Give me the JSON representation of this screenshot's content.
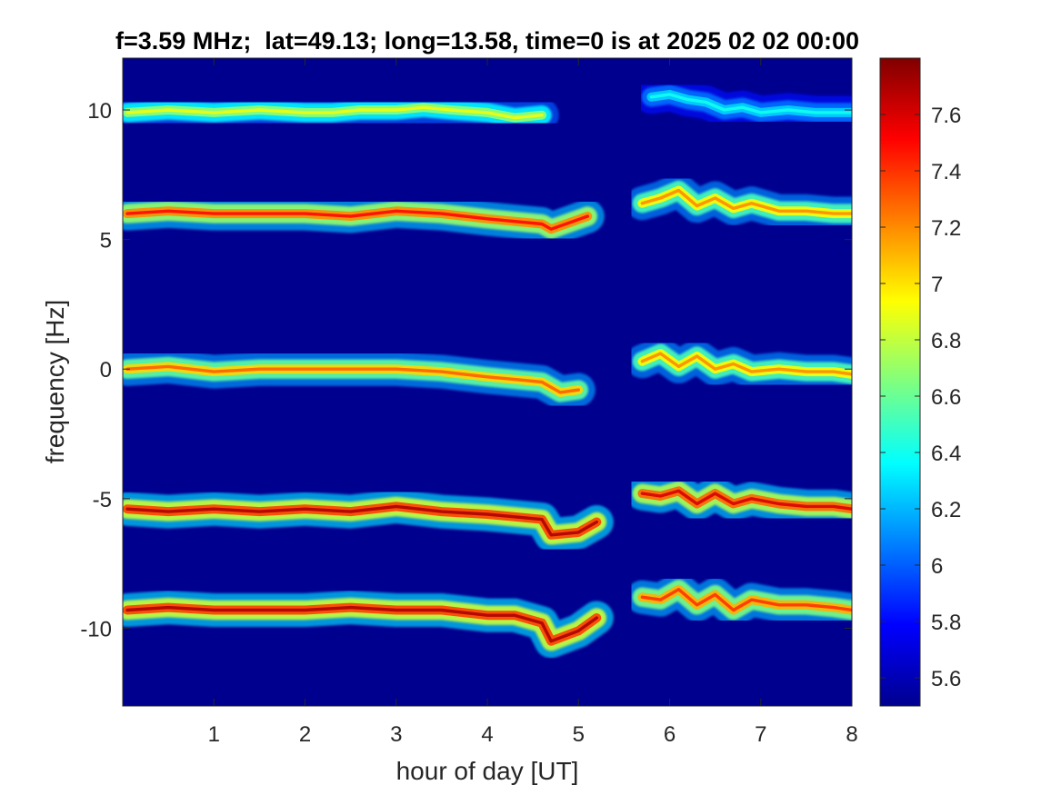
{
  "chart_data": {
    "type": "heatmap",
    "title": "f=3.59 MHz;  lat=49.13; long=13.58, time=0 is at 2025 02 02 00:00",
    "xlabel": "hour of day [UT]",
    "ylabel": "frequency [Hz]",
    "xlim": [
      0,
      8
    ],
    "ylim": [
      -13,
      12
    ],
    "x_ticks": [
      1,
      2,
      3,
      4,
      5,
      6,
      7,
      8
    ],
    "y_ticks": [
      10,
      5,
      0,
      -5,
      -10
    ],
    "colormap": "jet",
    "background_color": "#00008f",
    "clim": [
      5.5,
      7.8
    ],
    "colorbar_ticks": [
      7.6,
      7.4,
      7.2,
      7,
      6.8,
      6.6,
      6.4,
      6.2,
      6,
      5.8,
      5.6
    ],
    "data_gap_hours": [
      4.75,
      5.55
    ],
    "bands": [
      {
        "freq_hz": 10,
        "peak_value": 6.9,
        "x": [
          0.05,
          0.5,
          1.0,
          1.5,
          2.0,
          2.3,
          2.6,
          3.0,
          3.3,
          3.6,
          4.0,
          4.3,
          4.6
        ],
        "y": [
          9.9,
          10.0,
          9.9,
          10.0,
          9.9,
          9.9,
          10.0,
          10.0,
          10.1,
          10.0,
          9.9,
          9.7,
          9.8
        ]
      },
      {
        "freq_hz": 6,
        "peak_value": 7.5,
        "x": [
          0.05,
          0.5,
          1.0,
          1.5,
          2.0,
          2.5,
          3.0,
          3.5,
          4.0,
          4.3,
          4.6,
          4.7,
          5.1
        ],
        "y": [
          6.0,
          6.1,
          6.0,
          6.0,
          6.0,
          5.9,
          6.1,
          6.0,
          5.8,
          5.7,
          5.6,
          5.4,
          5.9
        ]
      },
      {
        "freq_hz": 0,
        "peak_value": 7.3,
        "x": [
          0.05,
          0.5,
          1.0,
          1.5,
          2.0,
          2.5,
          3.0,
          3.5,
          4.0,
          4.3,
          4.6,
          4.8,
          5.0
        ],
        "y": [
          0.0,
          0.1,
          -0.1,
          0.0,
          0.0,
          0.0,
          0.0,
          -0.1,
          -0.3,
          -0.4,
          -0.5,
          -0.9,
          -0.8
        ]
      },
      {
        "freq_hz": -5.4,
        "peak_value": 7.7,
        "x": [
          0.05,
          0.5,
          1.0,
          1.5,
          2.0,
          2.5,
          3.0,
          3.5,
          4.0,
          4.3,
          4.6,
          4.7,
          5.0,
          5.2
        ],
        "y": [
          -5.4,
          -5.5,
          -5.4,
          -5.5,
          -5.4,
          -5.5,
          -5.3,
          -5.5,
          -5.6,
          -5.7,
          -5.8,
          -6.4,
          -6.3,
          -5.9
        ]
      },
      {
        "freq_hz": -9.3,
        "peak_value": 7.7,
        "x": [
          0.05,
          0.5,
          1.0,
          1.5,
          2.0,
          2.5,
          3.0,
          3.5,
          4.0,
          4.3,
          4.6,
          4.7,
          5.0,
          5.2
        ],
        "y": [
          -9.3,
          -9.2,
          -9.3,
          -9.3,
          -9.3,
          -9.2,
          -9.3,
          -9.3,
          -9.5,
          -9.5,
          -9.8,
          -10.5,
          -10.1,
          -9.6
        ]
      },
      {
        "freq_hz": 10.3,
        "peak_value": 6.4,
        "x": [
          5.8,
          6.0,
          6.2,
          6.4,
          6.6,
          6.8,
          7.0,
          7.3,
          7.6,
          8.0
        ],
        "y": [
          10.5,
          10.6,
          10.4,
          10.3,
          10.0,
          10.1,
          9.9,
          10.0,
          9.9,
          9.9
        ]
      },
      {
        "freq_hz": 6.3,
        "peak_value": 7.2,
        "x": [
          5.7,
          5.9,
          6.1,
          6.3,
          6.5,
          6.7,
          6.9,
          7.2,
          7.5,
          7.8,
          8.0
        ],
        "y": [
          6.4,
          6.6,
          6.9,
          6.3,
          6.6,
          6.2,
          6.4,
          6.1,
          6.1,
          6.0,
          6.0
        ]
      },
      {
        "freq_hz": 0.3,
        "peak_value": 7.2,
        "x": [
          5.7,
          5.9,
          6.1,
          6.3,
          6.5,
          6.7,
          6.9,
          7.2,
          7.5,
          7.8,
          8.0
        ],
        "y": [
          0.3,
          0.6,
          0.1,
          0.5,
          0.0,
          0.2,
          -0.1,
          0.0,
          -0.1,
          -0.1,
          -0.2
        ]
      },
      {
        "freq_hz": -4.9,
        "peak_value": 7.6,
        "x": [
          5.7,
          5.9,
          6.1,
          6.3,
          6.5,
          6.7,
          6.9,
          7.2,
          7.5,
          7.8,
          8.0
        ],
        "y": [
          -4.8,
          -4.9,
          -4.7,
          -5.2,
          -4.8,
          -5.2,
          -5.0,
          -5.2,
          -5.3,
          -5.3,
          -5.4
        ]
      },
      {
        "freq_hz": -8.8,
        "peak_value": 7.4,
        "x": [
          5.7,
          5.9,
          6.1,
          6.3,
          6.5,
          6.7,
          6.9,
          7.2,
          7.5,
          7.8,
          8.0
        ],
        "y": [
          -8.8,
          -8.9,
          -8.5,
          -9.1,
          -8.7,
          -9.3,
          -8.9,
          -9.1,
          -9.1,
          -9.2,
          -9.3
        ]
      }
    ]
  }
}
